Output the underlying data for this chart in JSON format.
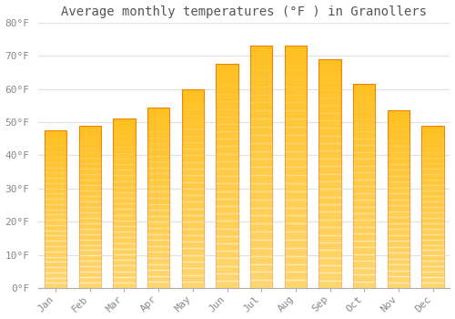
{
  "title": "Average monthly temperatures (°F ) in Granollers",
  "months": [
    "Jan",
    "Feb",
    "Mar",
    "Apr",
    "May",
    "Jun",
    "Jul",
    "Aug",
    "Sep",
    "Oct",
    "Nov",
    "Dec"
  ],
  "values": [
    47.5,
    49.0,
    51.0,
    54.5,
    60.0,
    67.5,
    73.0,
    73.0,
    69.0,
    61.5,
    53.5,
    49.0
  ],
  "bar_color_main": "#FFC020",
  "bar_color_dark": "#F08000",
  "background_color": "#FFFFFF",
  "grid_color": "#E0E0E0",
  "ylim": [
    0,
    80
  ],
  "yticks": [
    0,
    10,
    20,
    30,
    40,
    50,
    60,
    70,
    80
  ],
  "title_fontsize": 10,
  "tick_fontsize": 8,
  "title_color": "#555555",
  "tick_color": "#888888",
  "bar_width": 0.65
}
